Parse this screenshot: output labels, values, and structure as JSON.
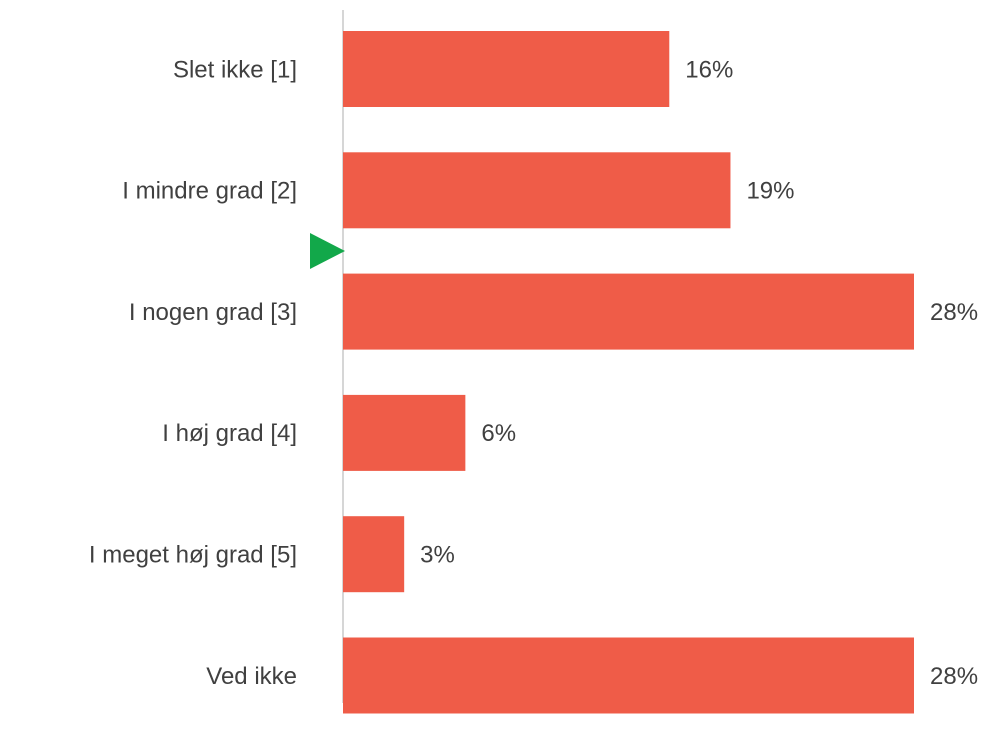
{
  "chart_data": {
    "type": "barh",
    "categories": [
      "Slet ikke [1]",
      "I mindre grad [2]",
      "I nogen grad [3]",
      "I høj grad [4]",
      "I meget høj grad [5]",
      "Ved ikke"
    ],
    "values": [
      16,
      19,
      28,
      6,
      3,
      28
    ],
    "value_labels": [
      "16%",
      "19%",
      "28%",
      "6%",
      "3%",
      "28%"
    ],
    "color": "#ef5c48",
    "xlim": [
      0,
      28
    ]
  }
}
